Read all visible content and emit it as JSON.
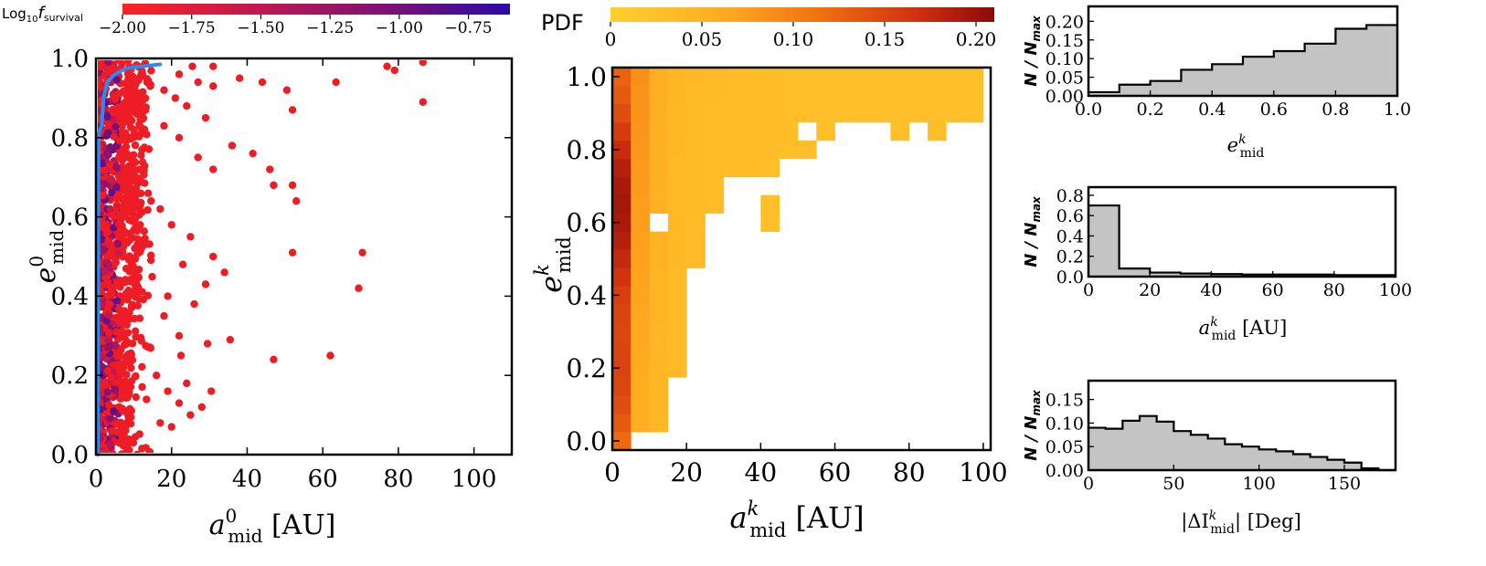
{
  "chart_data": [
    {
      "type": "scatter",
      "name": "scatter-initial",
      "xlabel": {
        "symbol": "a",
        "sup": "0",
        "sub": "mid",
        "unit": " [AU]"
      },
      "ylabel": {
        "symbol": "e",
        "sup": "0",
        "sub": "mid"
      },
      "xlim": [
        0,
        110
      ],
      "ylim": [
        0,
        1
      ],
      "xticks": [
        "0",
        "20",
        "40",
        "60",
        "80",
        "100"
      ],
      "xtick_values": [
        0,
        20,
        40,
        60,
        80,
        100
      ],
      "yticks": [
        "0.0",
        "0.2",
        "0.4",
        "0.6",
        "0.8",
        "1.0"
      ],
      "ytick_values": [
        0,
        0.2,
        0.4,
        0.6,
        0.8,
        1.0
      ],
      "colorbar": {
        "label_prefix": "Log",
        "label_base": "10",
        "label_f": "f",
        "label_sub": "survival",
        "ticks": [
          "-2.00",
          "-1.75",
          "-1.50",
          "-1.25",
          "-1.00",
          "-0.75"
        ],
        "tick_values": [
          -2.0,
          -1.75,
          -1.5,
          -1.25,
          -1.0,
          -0.75
        ],
        "range": [
          -2.0,
          -0.6
        ],
        "colors": [
          "#ff2222",
          "#c01850",
          "#7a1078",
          "#2a0aa8"
        ]
      },
      "outliers": [
        [
          25.5,
          0.98
        ],
        [
          22,
          0.96
        ],
        [
          31,
          0.98
        ],
        [
          18,
          0.92
        ],
        [
          21,
          0.9
        ],
        [
          27,
          0.94
        ],
        [
          24,
          0.88
        ],
        [
          29,
          0.85
        ],
        [
          31,
          0.93
        ],
        [
          38,
          0.95
        ],
        [
          44,
          0.94
        ],
        [
          50.5,
          0.92
        ],
        [
          52,
          0.87
        ],
        [
          63.5,
          0.94
        ],
        [
          77,
          0.98
        ],
        [
          79,
          0.97
        ],
        [
          86.5,
          0.99
        ],
        [
          86.5,
          0.89
        ],
        [
          41.5,
          0.76
        ],
        [
          46,
          0.72
        ],
        [
          47,
          0.68
        ],
        [
          52,
          0.68
        ],
        [
          53,
          0.64
        ],
        [
          36,
          0.78
        ],
        [
          31,
          0.72
        ],
        [
          22,
          0.8
        ],
        [
          27,
          0.75
        ],
        [
          18,
          0.83
        ],
        [
          52,
          0.51
        ],
        [
          70.5,
          0.51
        ],
        [
          69.5,
          0.42
        ],
        [
          31,
          0.5
        ],
        [
          34,
          0.46
        ],
        [
          29,
          0.43
        ],
        [
          23,
          0.48
        ],
        [
          19,
          0.4
        ],
        [
          26,
          0.38
        ],
        [
          35.5,
          0.29
        ],
        [
          29.5,
          0.28
        ],
        [
          22.5,
          0.25
        ],
        [
          47,
          0.24
        ],
        [
          62,
          0.25
        ],
        [
          30.5,
          0.16
        ],
        [
          24,
          0.18
        ],
        [
          19,
          0.16
        ],
        [
          20,
          0.07
        ],
        [
          17,
          0.08
        ],
        [
          25,
          0.1
        ],
        [
          28,
          0.12
        ],
        [
          22,
          0.13
        ],
        [
          16,
          0.2
        ],
        [
          18,
          0.35
        ],
        [
          20,
          0.58
        ],
        [
          17,
          0.62
        ],
        [
          22,
          0.3
        ],
        [
          25,
          0.55
        ]
      ],
      "track_curve": [
        [
          0.5,
          0.0
        ],
        [
          0.6,
          0.6
        ],
        [
          0.7,
          0.81
        ],
        [
          1.5,
          0.83
        ],
        [
          2,
          0.9
        ],
        [
          3,
          0.94
        ],
        [
          5,
          0.96
        ],
        [
          8,
          0.975
        ],
        [
          12,
          0.98
        ],
        [
          17,
          0.985
        ]
      ],
      "track_color": "#2a8cf0",
      "dot_color": "#ee1c24"
    },
    {
      "type": "heatmap",
      "name": "heatmap-final",
      "title": "PDF",
      "xlabel": {
        "symbol": "a",
        "sup": "k",
        "sub": "mid",
        "unit": " [AU]"
      },
      "ylabel": {
        "symbol": "e",
        "sup": "k",
        "sub": "mid"
      },
      "xlim": [
        0,
        102
      ],
      "ylim": [
        -0.025,
        1.025
      ],
      "xticks": [
        "0",
        "20",
        "40",
        "60",
        "80",
        "100"
      ],
      "xtick_values": [
        0,
        20,
        40,
        60,
        80,
        100
      ],
      "yticks": [
        "0.0",
        "0.2",
        "0.4",
        "0.6",
        "0.8",
        "1.0"
      ],
      "ytick_values": [
        0,
        0.2,
        0.4,
        0.6,
        0.8,
        1.0
      ],
      "bin_width": 5,
      "bin_height": 0.05,
      "colorbar": {
        "ticks": [
          "0",
          "0.05",
          "0.10",
          "0.15",
          "0.20"
        ],
        "tick_values": [
          0,
          0.05,
          0.1,
          0.15,
          0.2
        ],
        "range": [
          0,
          0.21
        ],
        "colors": [
          "#ffd030",
          "#ffaa20",
          "#f07010",
          "#d03010",
          "#8a0a0a"
        ]
      },
      "col_extent": [
        0.0,
        0.05,
        0.05,
        0.2,
        0.5,
        0.65,
        0.75,
        0.75,
        0.6,
        0.8,
        0.75,
        0.85,
        0.85,
        0.85,
        0.85,
        0.85,
        0.85,
        0.85,
        0.85,
        0.85
      ],
      "col_base": [
        0.13,
        0.05,
        0.038,
        0.03,
        0.026,
        0.024,
        0.023,
        0.022,
        0.021,
        0.02,
        0.02,
        0.02,
        0.02,
        0.02,
        0.02,
        0.02,
        0.02,
        0.02,
        0.02,
        0.02
      ],
      "holes": [
        [
          2,
          0.6
        ],
        [
          6,
          0.6
        ],
        [
          8,
          0.7
        ],
        [
          9,
          0.75
        ],
        [
          10,
          0.75
        ],
        [
          11,
          0.8
        ],
        [
          12,
          0.8
        ],
        [
          13,
          0.75
        ],
        [
          9,
          0.7
        ],
        [
          10,
          0.7
        ],
        [
          11,
          0.7
        ],
        [
          12,
          0.7
        ],
        [
          11,
          0.75
        ],
        [
          12,
          0.75
        ],
        [
          13,
          0.7
        ],
        [
          14,
          0.7
        ],
        [
          15,
          0.7
        ],
        [
          16,
          0.7
        ],
        [
          17,
          0.7
        ],
        [
          14,
          0.75
        ],
        [
          15,
          0.75
        ],
        [
          16,
          0.75
        ],
        [
          17,
          0.75
        ],
        [
          15,
          0.8
        ],
        [
          16,
          0.8
        ],
        [
          17,
          0.8
        ],
        [
          18,
          0.8
        ],
        [
          19,
          0.8
        ],
        [
          16,
          0.85
        ],
        [
          18,
          0.85
        ],
        [
          19,
          0.85
        ],
        [
          10,
          0.85
        ],
        [
          12,
          0.85
        ],
        [
          13,
          0.85
        ],
        [
          14,
          0.85
        ],
        [
          9,
          0.65
        ],
        [
          10,
          0.65
        ],
        [
          11,
          0.65
        ],
        [
          12,
          0.65
        ],
        [
          13,
          0.65
        ],
        [
          14,
          0.65
        ],
        [
          15,
          0.65
        ],
        [
          16,
          0.65
        ],
        [
          17,
          0.65
        ],
        [
          18,
          0.65
        ],
        [
          19,
          0.65
        ],
        [
          13,
          0.6
        ],
        [
          14,
          0.6
        ],
        [
          15,
          0.6
        ],
        [
          16,
          0.6
        ],
        [
          17,
          0.6
        ],
        [
          18,
          0.6
        ],
        [
          19,
          0.6
        ],
        [
          14,
          0.8
        ],
        [
          13,
          0.8
        ],
        [
          18,
          0.75
        ],
        [
          19,
          0.75
        ],
        [
          19,
          0.7
        ],
        [
          18,
          0.7
        ]
      ],
      "extra_cells": [
        [
          8,
          0.75
        ],
        [
          11,
          0.7
        ]
      ]
    },
    {
      "type": "bar",
      "name": "hist-eccentricity",
      "ylabel": {
        "text": "N / N",
        "sub": "max"
      },
      "xlabel": {
        "symbol": "e",
        "sup": "k",
        "sub": "mid",
        "unit": ""
      },
      "xlim": [
        0,
        1
      ],
      "ylim": [
        0,
        0.24
      ],
      "xticks": [
        "0.0",
        "0.2",
        "0.4",
        "0.6",
        "0.8",
        "1.0"
      ],
      "xtick_values": [
        0,
        0.2,
        0.4,
        0.6,
        0.8,
        1.0
      ],
      "yticks": [
        "0.00",
        "0.05",
        "0.10",
        "0.15",
        "0.20"
      ],
      "ytick_values": [
        0,
        0.05,
        0.1,
        0.15,
        0.2
      ],
      "bin_edges": [
        0,
        0.1,
        0.2,
        0.3,
        0.4,
        0.5,
        0.6,
        0.7,
        0.8,
        0.9,
        1.0
      ],
      "values": [
        0.01,
        0.03,
        0.04,
        0.07,
        0.085,
        0.105,
        0.12,
        0.14,
        0.18,
        0.19
      ]
    },
    {
      "type": "bar",
      "name": "hist-semimajor",
      "ylabel": {
        "text": "N / N",
        "sub": "max"
      },
      "xlabel": {
        "symbol": "a",
        "sup": "k",
        "sub": "mid",
        "unit": " [AU]"
      },
      "xlim": [
        0,
        100
      ],
      "ylim": [
        0,
        0.88
      ],
      "xticks": [
        "0",
        "20",
        "40",
        "60",
        "80",
        "100"
      ],
      "xtick_values": [
        0,
        20,
        40,
        60,
        80,
        100
      ],
      "yticks": [
        "0.0",
        "0.2",
        "0.4",
        "0.6",
        "0.8"
      ],
      "ytick_values": [
        0,
        0.2,
        0.4,
        0.6,
        0.8
      ],
      "bin_edges": [
        0,
        10,
        20,
        30,
        40,
        50,
        60,
        70,
        80,
        90,
        100
      ],
      "values": [
        0.7,
        0.08,
        0.04,
        0.03,
        0.025,
        0.02,
        0.02,
        0.02,
        0.015,
        0.015
      ]
    },
    {
      "type": "bar",
      "name": "hist-inclination",
      "ylabel": {
        "text": "N / N",
        "sub": "max"
      },
      "xlabel": {
        "prefix": "|ΔI",
        "sup": "k",
        "sub": "mid",
        "unit": "| [Deg]"
      },
      "xlim": [
        0,
        180
      ],
      "ylim": [
        0,
        0.19
      ],
      "xticks": [
        "0",
        "50",
        "100",
        "150"
      ],
      "xtick_values": [
        0,
        50,
        100,
        150
      ],
      "yticks": [
        "0.00",
        "0.05",
        "0.10",
        "0.15"
      ],
      "ytick_values": [
        0,
        0.05,
        0.1,
        0.15
      ],
      "bin_edges": [
        0,
        10,
        20,
        30,
        40,
        50,
        60,
        70,
        80,
        90,
        100,
        110,
        120,
        130,
        140,
        150,
        160,
        170,
        180
      ],
      "values": [
        0.09,
        0.088,
        0.105,
        0.115,
        0.103,
        0.083,
        0.075,
        0.067,
        0.055,
        0.05,
        0.044,
        0.04,
        0.034,
        0.028,
        0.022,
        0.016,
        0.004,
        0.0
      ]
    }
  ]
}
